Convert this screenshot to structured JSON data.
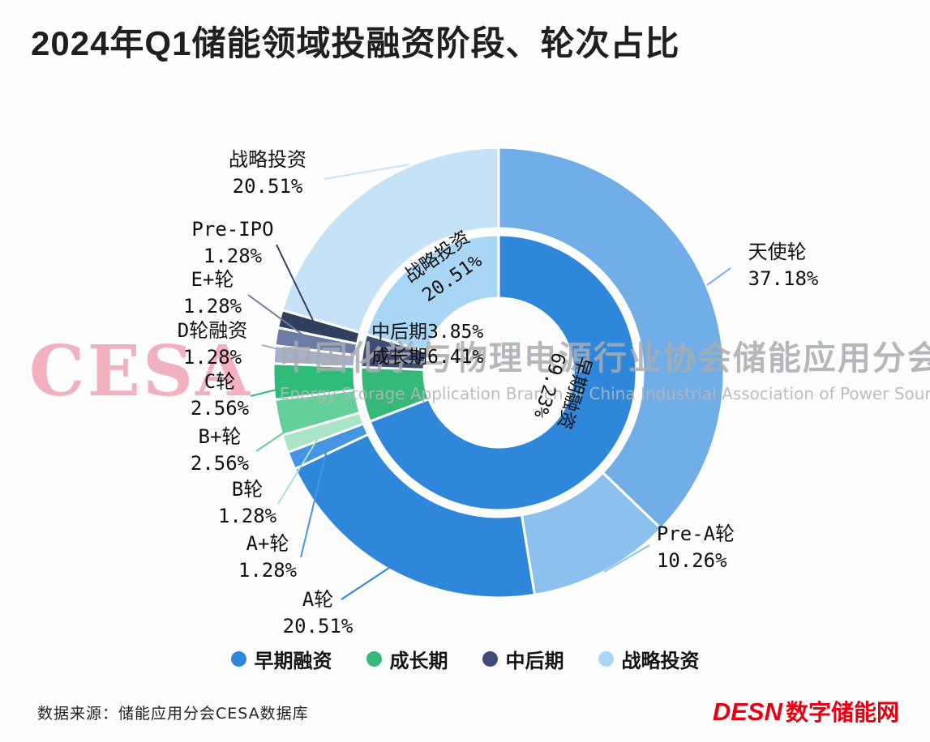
{
  "title": "2024年Q1储能领域投融资阶段、轮次占比",
  "watermark": {
    "logo": "CESA",
    "cn": "中国化学与物理电源行业协会储能应用分会",
    "en": "Energy Storage Application Branch of China Industrial Association of Power Sources"
  },
  "legend": [
    {
      "label": "早期融资",
      "color": "#2f87dc"
    },
    {
      "label": "成长期",
      "color": "#36b878"
    },
    {
      "label": "中后期",
      "color": "#3e4d74"
    },
    {
      "label": "战略投资",
      "color": "#a9d6f5"
    }
  ],
  "footer": {
    "source": "数据来源：储能应用分会CESA数据库",
    "brand_en": "DESN",
    "brand_cn": "数字储能网"
  },
  "chart_data": {
    "type": "pie",
    "subtype": "nested-donut",
    "title": "2024年Q1储能领域投融资阶段、轮次占比",
    "legend_position": "bottom",
    "inner_ring": [
      {
        "name": "早期融资",
        "value": 69.23,
        "pct": "69.23%",
        "color": "#2f87dc"
      },
      {
        "name": "成长期",
        "value": 6.41,
        "pct": "6.41%",
        "color": "#36b878"
      },
      {
        "name": "中后期",
        "value": 3.85,
        "pct": "3.85%",
        "color": "#3e4d74"
      },
      {
        "name": "战略投资",
        "value": 20.51,
        "pct": "20.51%",
        "color": "#a9d6f5"
      }
    ],
    "outer_ring": [
      {
        "name": "天使轮",
        "value": 37.18,
        "pct": "37.18%",
        "parent": "早期融资",
        "color": "#71aee7"
      },
      {
        "name": "Pre-A轮",
        "value": 10.26,
        "pct": "10.26%",
        "parent": "早期融资",
        "color": "#8cc0ee"
      },
      {
        "name": "A轮",
        "value": 20.51,
        "pct": "20.51%",
        "parent": "早期融资",
        "color": "#2f87dc"
      },
      {
        "name": "A+轮",
        "value": 1.28,
        "pct": "1.28%",
        "parent": "早期融资",
        "color": "#4595e2"
      },
      {
        "name": "B轮",
        "value": 1.28,
        "pct": "1.28%",
        "parent": "成长期",
        "color": "#a8e4c6"
      },
      {
        "name": "B+轮",
        "value": 2.56,
        "pct": "2.56%",
        "parent": "成长期",
        "color": "#63cf9a"
      },
      {
        "name": "C轮",
        "value": 2.56,
        "pct": "2.56%",
        "parent": "成长期",
        "color": "#2fbc78"
      },
      {
        "name": "D轮融资",
        "value": 1.28,
        "pct": "1.28%",
        "parent": "中后期",
        "color": "#a3b1cb"
      },
      {
        "name": "E+轮",
        "value": 1.28,
        "pct": "1.28%",
        "parent": "中后期",
        "color": "#6b7ba3"
      },
      {
        "name": "Pre-IPO",
        "value": 1.28,
        "pct": "1.28%",
        "parent": "中后期",
        "color": "#32405f"
      },
      {
        "name": "战略投资",
        "value": 20.51,
        "pct": "20.51%",
        "parent": "战略投资",
        "color": "#c6e2f7"
      }
    ]
  }
}
